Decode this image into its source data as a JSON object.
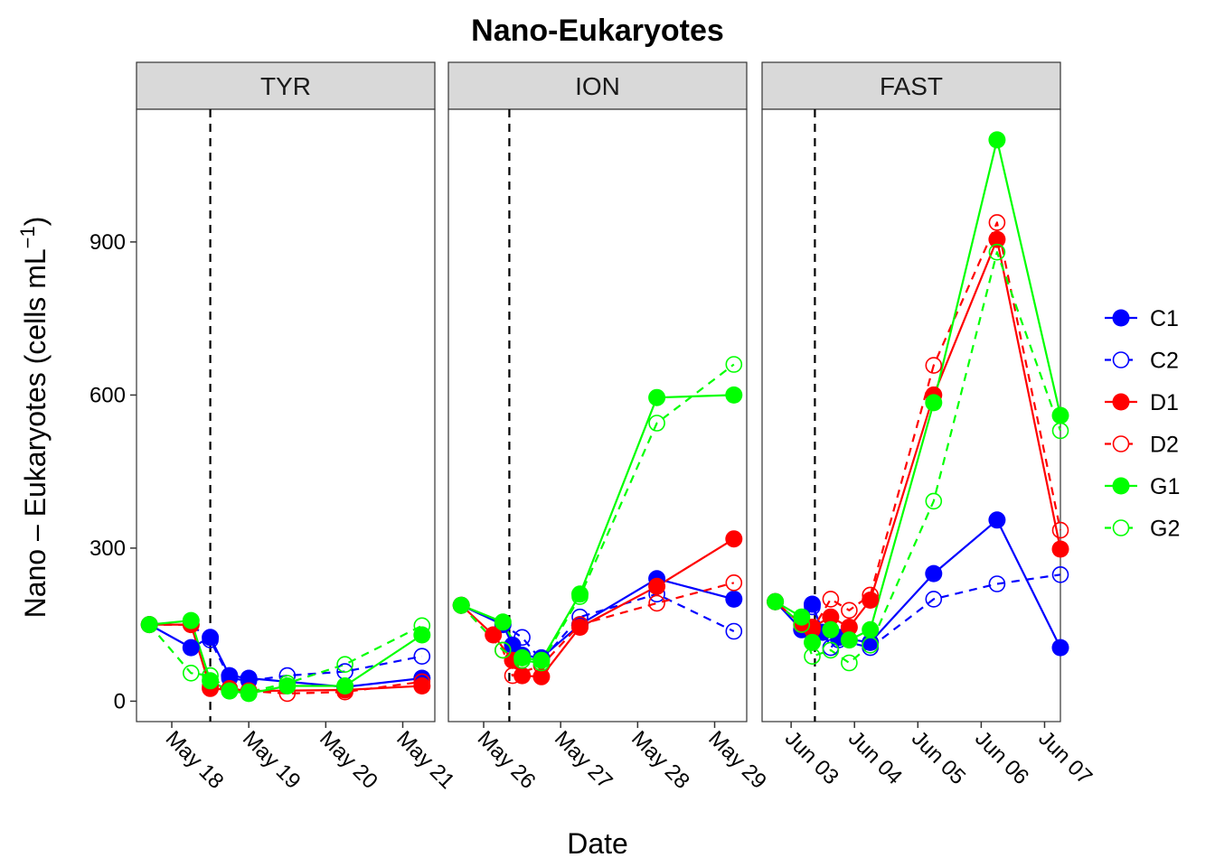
{
  "chart_data": {
    "type": "line",
    "title": "Nano-Eukaryotes",
    "xlabel": "Date",
    "ylabel": "Nano – Eukaryotes (cells mL",
    "ylabel_superscript": "−1",
    "ylabel_close": ")",
    "ylim": [
      -40,
      1160
    ],
    "yticks": [
      0,
      300,
      600,
      900
    ],
    "grid": false,
    "legend_position": "right",
    "series_styles": [
      {
        "name": "C1",
        "color": "#0000FF",
        "dashed": false,
        "filled": true
      },
      {
        "name": "C2",
        "color": "#0000FF",
        "dashed": true,
        "filled": false
      },
      {
        "name": "D1",
        "color": "#FF0000",
        "dashed": false,
        "filled": true
      },
      {
        "name": "D2",
        "color": "#FF0000",
        "dashed": true,
        "filled": false
      },
      {
        "name": "G1",
        "color": "#00FF00",
        "dashed": false,
        "filled": true
      },
      {
        "name": "G2",
        "color": "#00FF00",
        "dashed": true,
        "filled": false
      }
    ],
    "panels": [
      {
        "label": "TYR",
        "xlim": [
          "2013-05-17 13:00",
          "2013-05-21 10:00"
        ],
        "x_ticks": [
          "May 18",
          "May 19",
          "May 20",
          "May 21"
        ],
        "x_tick_dates": [
          "2013-05-18 00:00",
          "2013-05-19 00:00",
          "2013-05-20 00:00",
          "2013-05-21 00:00"
        ],
        "vline": "2013-05-18 12:00",
        "series": [
          {
            "name": "C1",
            "x": [
              "2013-05-17 17:00",
              "2013-05-18 06:00",
              "2013-05-18 12:00",
              "2013-05-18 18:00",
              "2013-05-19 00:00",
              "2013-05-20 06:00",
              "2013-05-21 06:00"
            ],
            "values": [
              150,
              105,
              125,
              50,
              45,
              28,
              45
            ]
          },
          {
            "name": "C2",
            "x": [
              "2013-05-17 17:00",
              "2013-05-18 06:00",
              "2013-05-18 12:00",
              "2013-05-18 18:00",
              "2013-05-19 00:00",
              "2013-05-19 12:00",
              "2013-05-20 06:00",
              "2013-05-21 06:00"
            ],
            "values": [
              150,
              150,
              120,
              45,
              40,
              50,
              58,
              88
            ]
          },
          {
            "name": "D1",
            "x": [
              "2013-05-17 17:00",
              "2013-05-18 06:00",
              "2013-05-18 12:00",
              "2013-05-18 18:00",
              "2013-05-19 00:00",
              "2013-05-20 06:00",
              "2013-05-21 06:00"
            ],
            "values": [
              150,
              150,
              25,
              22,
              20,
              22,
              30
            ]
          },
          {
            "name": "D2",
            "x": [
              "2013-05-17 17:00",
              "2013-05-18 06:00",
              "2013-05-18 12:00",
              "2013-05-18 18:00",
              "2013-05-19 00:00",
              "2013-05-19 12:00",
              "2013-05-20 06:00",
              "2013-05-21 06:00"
            ],
            "values": [
              150,
              150,
              30,
              25,
              20,
              15,
              18,
              38
            ]
          },
          {
            "name": "G1",
            "x": [
              "2013-05-17 17:00",
              "2013-05-18 06:00",
              "2013-05-18 12:00",
              "2013-05-18 18:00",
              "2013-05-19 00:00",
              "2013-05-19 12:00",
              "2013-05-20 06:00",
              "2013-05-21 06:00"
            ],
            "values": [
              150,
              158,
              40,
              20,
              15,
              30,
              30,
              130
            ]
          },
          {
            "name": "G2",
            "x": [
              "2013-05-17 17:00",
              "2013-05-18 06:00",
              "2013-05-18 12:00",
              "2013-05-18 18:00",
              "2013-05-19 00:00",
              "2013-05-19 12:00",
              "2013-05-20 06:00",
              "2013-05-21 06:00"
            ],
            "values": [
              150,
              55,
              50,
              20,
              18,
              35,
              72,
              148
            ]
          }
        ]
      },
      {
        "label": "ION",
        "xlim": [
          "2013-05-25 13:00",
          "2013-05-29 10:00"
        ],
        "x_ticks": [
          "May 26",
          "May 27",
          "May 28",
          "May 29"
        ],
        "x_tick_dates": [
          "2013-05-26 00:00",
          "2013-05-27 00:00",
          "2013-05-28 00:00",
          "2013-05-29 00:00"
        ],
        "vline": "2013-05-26 08:00",
        "series": [
          {
            "name": "C1",
            "x": [
              "2013-05-25 17:00",
              "2013-05-26 06:00",
              "2013-05-26 09:00",
              "2013-05-26 12:00",
              "2013-05-26 18:00",
              "2013-05-27 06:00",
              "2013-05-28 06:00",
              "2013-05-29 06:00"
            ],
            "values": [
              188,
              150,
              110,
              90,
              85,
              150,
              240,
              200
            ]
          },
          {
            "name": "C2",
            "x": [
              "2013-05-25 17:00",
              "2013-05-26 06:00",
              "2013-05-26 12:00",
              "2013-05-26 18:00",
              "2013-05-27 06:00",
              "2013-05-28 06:00",
              "2013-05-29 06:00"
            ],
            "values": [
              188,
              150,
              125,
              80,
              165,
              210,
              137
            ]
          },
          {
            "name": "D1",
            "x": [
              "2013-05-25 17:00",
              "2013-05-26 03:00",
              "2013-05-26 09:00",
              "2013-05-26 12:00",
              "2013-05-26 18:00",
              "2013-05-27 06:00",
              "2013-05-28 06:00",
              "2013-05-29 06:00"
            ],
            "values": [
              188,
              130,
              80,
              50,
              48,
              145,
              225,
              318
            ]
          },
          {
            "name": "D2",
            "x": [
              "2013-05-25 17:00",
              "2013-05-26 06:00",
              "2013-05-26 09:00",
              "2013-05-26 18:00",
              "2013-05-27 06:00",
              "2013-05-28 06:00",
              "2013-05-29 06:00"
            ],
            "values": [
              188,
              100,
              50,
              70,
              150,
              192,
              232
            ]
          },
          {
            "name": "G1",
            "x": [
              "2013-05-25 17:00",
              "2013-05-26 06:00",
              "2013-05-26 12:00",
              "2013-05-26 18:00",
              "2013-05-27 06:00",
              "2013-05-28 06:00",
              "2013-05-29 06:00"
            ],
            "values": [
              188,
              155,
              85,
              80,
              210,
              595,
              600
            ]
          },
          {
            "name": "G2",
            "x": [
              "2013-05-25 17:00",
              "2013-05-26 06:00",
              "2013-05-26 12:00",
              "2013-05-26 18:00",
              "2013-05-27 06:00",
              "2013-05-28 06:00",
              "2013-05-29 06:00"
            ],
            "values": [
              188,
              100,
              80,
              75,
              205,
              545,
              660
            ]
          }
        ]
      },
      {
        "label": "FAST",
        "xlim": [
          "2013-06-02 13:00",
          "2013-06-07 06:00"
        ],
        "x_ticks": [
          "Jun 03",
          "Jun 04",
          "Jun 05",
          "Jun 06",
          "Jun 07"
        ],
        "x_tick_dates": [
          "2013-06-03 00:00",
          "2013-06-04 00:00",
          "2013-06-05 00:00",
          "2013-06-06 00:00",
          "2013-06-07 00:00"
        ],
        "vline": "2013-06-03 09:00",
        "series": [
          {
            "name": "C1",
            "x": [
              "2013-06-02 18:00",
              "2013-06-03 04:00",
              "2013-06-03 08:00",
              "2013-06-03 12:00",
              "2013-06-03 18:00",
              "2013-06-04 06:00",
              "2013-06-05 06:00",
              "2013-06-06 06:00",
              "2013-06-07 06:00"
            ],
            "values": [
              195,
              140,
              190,
              135,
              125,
              115,
              250,
              355,
              105
            ]
          },
          {
            "name": "C2",
            "x": [
              "2013-06-02 18:00",
              "2013-06-03 04:00",
              "2013-06-03 08:00",
              "2013-06-03 15:00",
              "2013-06-03 18:00",
              "2013-06-04 06:00",
              "2013-06-05 06:00",
              "2013-06-06 06:00",
              "2013-06-07 06:00"
            ],
            "values": [
              195,
              150,
              185,
              105,
              120,
              105,
              200,
              230,
              248
            ]
          },
          {
            "name": "D1",
            "x": [
              "2013-06-02 18:00",
              "2013-06-03 04:00",
              "2013-06-03 08:00",
              "2013-06-03 15:00",
              "2013-06-03 22:00",
              "2013-06-04 06:00",
              "2013-06-05 06:00",
              "2013-06-06 06:00",
              "2013-06-07 06:00"
            ],
            "values": [
              195,
              150,
              145,
              165,
              145,
              198,
              600,
              905,
              298
            ]
          },
          {
            "name": "D2",
            "x": [
              "2013-06-02 18:00",
              "2013-06-03 04:00",
              "2013-06-03 08:00",
              "2013-06-03 15:00",
              "2013-06-03 22:00",
              "2013-06-04 06:00",
              "2013-06-05 06:00",
              "2013-06-06 06:00",
              "2013-06-07 06:00"
            ],
            "values": [
              195,
              150,
              140,
              200,
              178,
              208,
              658,
              938,
              335
            ]
          },
          {
            "name": "G1",
            "x": [
              "2013-06-02 18:00",
              "2013-06-03 04:00",
              "2013-06-03 08:00",
              "2013-06-03 15:00",
              "2013-06-03 22:00",
              "2013-06-04 06:00",
              "2013-06-05 06:00",
              "2013-06-06 06:00",
              "2013-06-07 06:00"
            ],
            "values": [
              195,
              165,
              115,
              140,
              120,
              140,
              585,
              1100,
              560
            ]
          },
          {
            "name": "G2",
            "x": [
              "2013-06-02 18:00",
              "2013-06-03 04:00",
              "2013-06-03 08:00",
              "2013-06-03 15:00",
              "2013-06-03 22:00",
              "2013-06-04 06:00",
              "2013-06-05 06:00",
              "2013-06-06 06:00",
              "2013-06-07 06:00"
            ],
            "values": [
              195,
              150,
              88,
              100,
              75,
              110,
              392,
              880,
              530
            ]
          }
        ]
      }
    ]
  }
}
